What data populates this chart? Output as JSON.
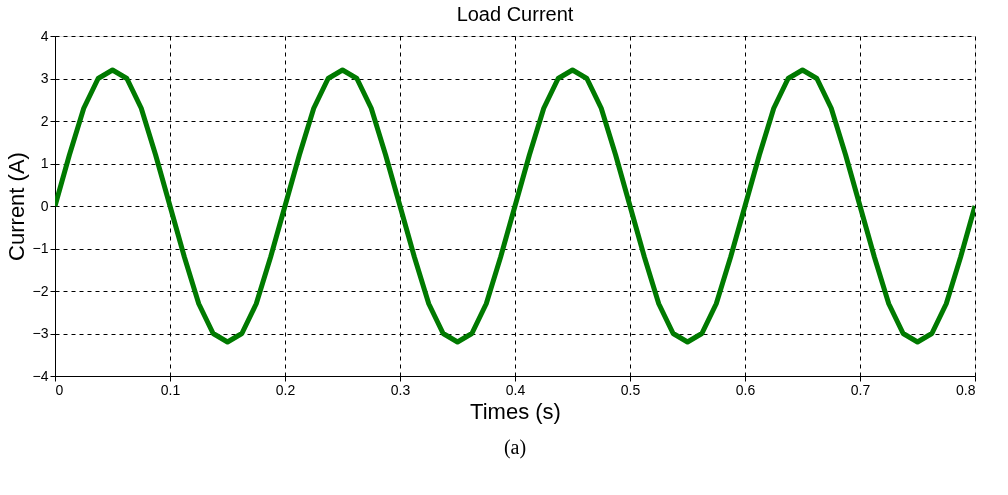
{
  "chart_data": {
    "type": "line",
    "title": "Load Current",
    "xlabel": "Times (s)",
    "ylabel": "Current (A)",
    "annotations": [
      "(a)"
    ],
    "x": [
      0,
      0.0125,
      0.025,
      0.0375,
      0.05,
      0.0625,
      0.075,
      0.0875,
      0.1,
      0.1125,
      0.125,
      0.1375,
      0.15,
      0.1625,
      0.175,
      0.1875,
      0.2,
      0.2125,
      0.225,
      0.2375,
      0.25,
      0.2625,
      0.275,
      0.2875,
      0.3,
      0.3125,
      0.325,
      0.3375,
      0.35,
      0.3625,
      0.375,
      0.3875,
      0.4,
      0.4125,
      0.425,
      0.4375,
      0.45,
      0.4625,
      0.475,
      0.4875,
      0.5,
      0.5125,
      0.525,
      0.5375,
      0.55,
      0.5625,
      0.575,
      0.5875,
      0.6,
      0.6125,
      0.625,
      0.6375,
      0.65,
      0.6625,
      0.675,
      0.6875,
      0.7,
      0.7125,
      0.725,
      0.7375,
      0.75,
      0.7625,
      0.775,
      0.7875,
      0.8
    ],
    "series": [
      {
        "color": "#007a00",
        "values": [
          0,
          1.2,
          2.3,
          3,
          3.2,
          3,
          2.3,
          1.2,
          0,
          -1.2,
          -2.3,
          -3,
          -3.2,
          -3,
          -2.3,
          -1.2,
          0,
          1.2,
          2.3,
          3,
          3.2,
          3,
          2.3,
          1.2,
          0,
          -1.2,
          -2.3,
          -3,
          -3.2,
          -3,
          -2.3,
          -1.2,
          0,
          1.2,
          2.3,
          3,
          3.2,
          3,
          2.3,
          1.2,
          0,
          -1.2,
          -2.3,
          -3,
          -3.2,
          -3,
          -2.3,
          -1.2,
          0,
          1.2,
          2.3,
          3,
          3.2,
          3,
          2.3,
          1.2,
          0,
          -1.2,
          -2.3,
          -3,
          -3.2,
          -3,
          -2.3,
          -1.2,
          0
        ]
      }
    ],
    "xlim": [
      0,
      0.8
    ],
    "xticks": [
      0,
      0.1,
      0.2,
      0.3,
      0.4,
      0.5,
      0.6,
      0.7,
      0.8
    ],
    "ylim": [
      -4,
      4
    ],
    "yticks": [
      -4,
      -3,
      -2,
      -1,
      0,
      1,
      2,
      3,
      4
    ],
    "grid": true,
    "line_style": "solid",
    "marker": "none",
    "legend": false
  }
}
